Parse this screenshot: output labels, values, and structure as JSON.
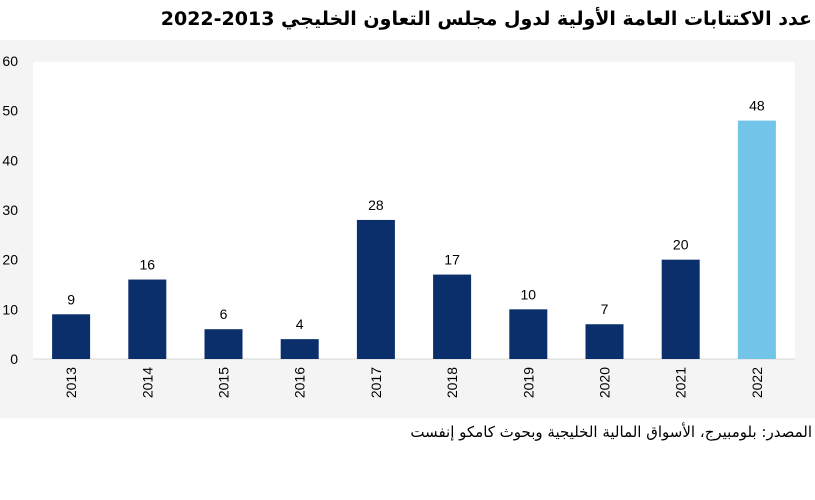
{
  "chart_data": {
    "type": "bar",
    "title": "عدد الاكتتابات العامة الأولية لدول مجلس التعاون الخليجي 2013-2022",
    "categories": [
      "2013",
      "2014",
      "2015",
      "2016",
      "2017",
      "2018",
      "2019",
      "2020",
      "2021",
      "2022"
    ],
    "values": [
      9,
      16,
      6,
      4,
      28,
      17,
      10,
      7,
      20,
      48
    ],
    "value_labels": [
      "9",
      "16",
      "6",
      "4",
      "28",
      "17",
      "10",
      "7",
      "20",
      "48"
    ],
    "ylim": [
      0,
      60
    ],
    "yticks": [
      "0",
      "10",
      "20",
      "30",
      "40",
      "50",
      "60"
    ],
    "grid": false,
    "xlabel": "",
    "ylabel": "",
    "colors": {
      "default": "#0b2f6b",
      "highlight": "#72c4e8"
    },
    "highlight_index": 9,
    "source": "المصدر: بلومبيرج، الأسواق المالية الخليجية وبحوث كامكو إنفست"
  }
}
